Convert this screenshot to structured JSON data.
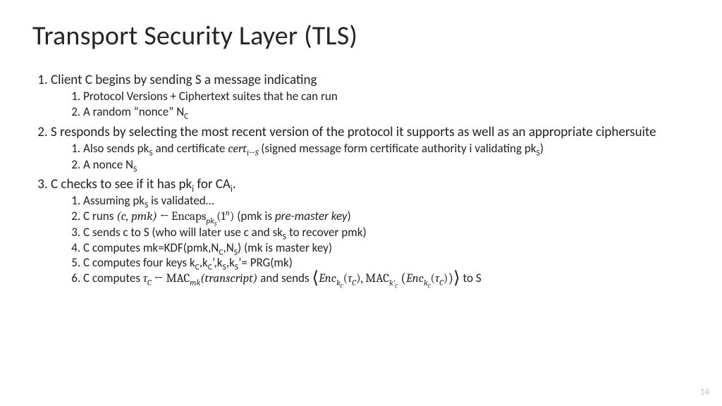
{
  "title": "Transport Security Layer (TLS)",
  "page_number": "14",
  "colors": {
    "background": "#ffffff",
    "text": "#000000",
    "title": "#262626",
    "page_num": "#bfbfbf"
  },
  "fonts": {
    "body": "Calibri",
    "math": "Cambria Math",
    "title_size_pt": 38,
    "body_size_pt": 19,
    "sub_size_pt": 17
  },
  "items": {
    "i1": {
      "lead": "Client C begins by sending S a message indicating",
      "s1": "Protocol Versions + Ciphertext suites that he can run",
      "s2_pre": "A random “nonce” N",
      "s2_sub": "C"
    },
    "i2": {
      "lead": "S responds by selecting the most recent version of the protocol it supports as well as an appropriate ciphersuite",
      "s1_a": "Also sends pk",
      "s1_a_sub": "S",
      "s1_b": " and certificate ",
      "s1_cert": "cert",
      "s1_cert_sub": "i→S",
      "s1_c": " (signed message form certificate authority i validating pk",
      "s1_c_sub": "S",
      "s1_d": ")",
      "s2_a": "A nonce N",
      "s2_sub": "S"
    },
    "i3": {
      "lead_a": "C checks to see if it has pk",
      "lead_a_sub": "i",
      "lead_b": " for CA",
      "lead_b_sub": "i",
      "lead_c": ".",
      "s1_a": "Assuming pk",
      "s1_sub": "S",
      "s1_b": " is validated…",
      "s2_a": "C runs ",
      "s2_math_lhs": "(c, pmk) ← ",
      "s2_encaps": "Encaps",
      "s2_encaps_sub": "pk",
      "s2_encaps_sub2": "S",
      "s2_arg": "(1",
      "s2_arg_sup": "n",
      "s2_arg_close": ")",
      "s2_tail": "   (pmk is ",
      "s2_tail_ital": "pre-master key",
      "s2_tail_close": ")",
      "s3_a": "C sends c to S (who will later use c and sk",
      "s3_sub": "S",
      "s3_b": " to recover pmk)",
      "s4_a": "C computes mk=KDF(pmk,N",
      "s4_sub1": "C",
      "s4_b": ",N",
      "s4_sub2": "S",
      "s4_c": ")     (mk is master key)",
      "s5_a": "C computes four keys k",
      "s5_sub1": "C",
      "s5_b": ",k",
      "s5_sub2": "C",
      "s5_prime2": "’,k",
      "s5_sub3": "S",
      "s5_d": ",k",
      "s5_sub4": "S",
      "s5_e": "’= PRG(mk)",
      "s6_a": "C computes ",
      "s6_tau": "τ",
      "s6_tau_sub": "C",
      "s6_arrow": " ← ",
      "s6_mac": "MAC",
      "s6_mac_sub": "mk",
      "s6_tr": "(transcript)",
      "s6_mid": " and sends ",
      "s6_lang": "⟨",
      "s6_enc1": "Enc",
      "s6_enc1_sub": "k",
      "s6_enc1_sub2": "C",
      "s6_enc1_arg_open": "(",
      "s6_enc1_tau": "τ",
      "s6_enc1_tau_sub": "C",
      "s6_enc1_arg_close": ")",
      "s6_comma": ", ",
      "s6_mac2": "MAC",
      "s6_mac2_sub": "k’",
      "s6_mac2_sub2": "C",
      "s6_mac2_open": " (",
      "s6_enc2": "Enc",
      "s6_enc2_sub": "k",
      "s6_enc2_sub2": "C",
      "s6_enc2_arg_open": "(",
      "s6_enc2_tau": "τ",
      "s6_enc2_tau_sub": "C",
      "s6_enc2_arg_close": ")",
      "s6_mac2_close": ")",
      "s6_rang": "⟩",
      "s6_tail": " to S"
    }
  }
}
